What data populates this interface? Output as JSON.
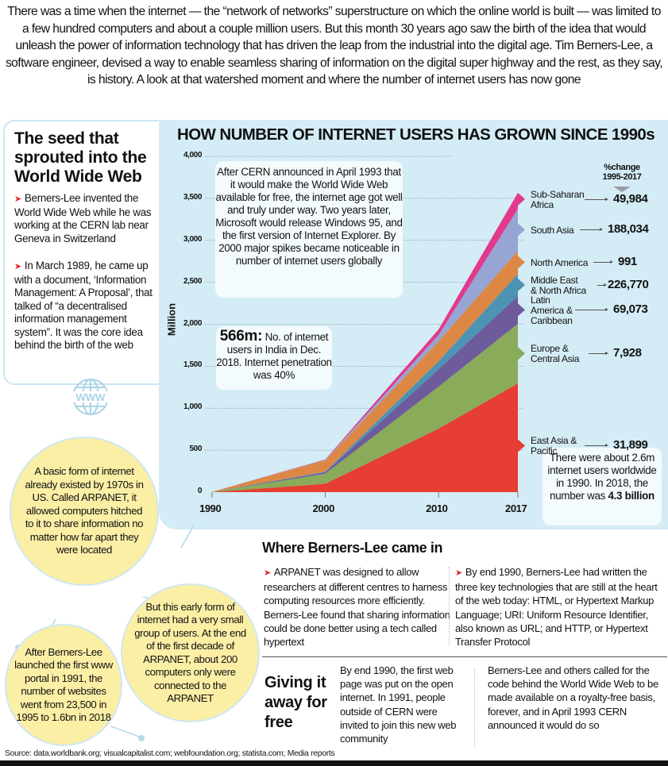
{
  "intro": "There was a time when the internet — the “network of networks” superstructure on which the online world is built — was limited to a few hundred computers and about a couple million users. But this month 30 years ago saw the birth of the idea that would unleash the power of information technology that has driven the leap from the industrial into the digital age. Tim Berners-Lee, a software engineer, devised a way to enable seamless sharing of information on the digital super highway and the rest, as they say, is history. A look at that watershed moment and where the number of internet users has now gone",
  "seed": {
    "title": "The seed that sprouted into the World Wide Web",
    "points": [
      "Berners-Lee invented the World Wide Web while he was working at the CERN lab near Geneva in Switzerland",
      "In March 1989, he came up with a document, ‘Information Management: A Proposal’, that talked of “a decentralised information management system”. It was the core idea behind the birth of the web"
    ],
    "icon_label": "WWW"
  },
  "chart_data": {
    "type": "area",
    "stacked": true,
    "title": "HOW NUMBER OF INTERNET USERS HAS GROWN SINCE 1990s",
    "xlabel": "",
    "ylabel": "Million",
    "x": [
      1990,
      2000,
      2010,
      2017
    ],
    "x_tick_labels": [
      "1990",
      "2000",
      "2010",
      "2017"
    ],
    "ylim": [
      0,
      4000
    ],
    "y_ticks": [
      0,
      500,
      1000,
      1500,
      2000,
      2500,
      3000,
      3500,
      4000
    ],
    "y_tick_labels": [
      "0",
      "500",
      "1,000",
      "1,500",
      "2,000",
      "2,500",
      "3,000",
      "3,500",
      "4,000"
    ],
    "grid": true,
    "legend_position": "right",
    "legend_header": [
      "%change",
      "1995-2017"
    ],
    "series": [
      {
        "name": "East Asia & Pacific",
        "color": "#e63e33",
        "values": [
          1,
          100,
          757,
          1296
        ],
        "pct_change": "31,899"
      },
      {
        "name": "Europe & Central Asia",
        "color": "#8aab59",
        "values": [
          1,
          120,
          500,
          710
        ],
        "pct_change": "7,928"
      },
      {
        "name": "Latin America & Caribbean",
        "color": "#6e5b9b",
        "values": [
          0,
          18,
          208,
          330
        ],
        "pct_change": "69,073"
      },
      {
        "name": "Middle East & North Africa",
        "color": "#4d93b3",
        "values": [
          0,
          7,
          95,
          265
        ],
        "pct_change": "226,770"
      },
      {
        "name": "North America",
        "color": "#dc8844",
        "values": [
          1,
          135,
          237,
          275
        ],
        "pct_change": "991"
      },
      {
        "name": "South Asia",
        "color": "#96a5d3",
        "values": [
          0,
          5,
          75,
          500
        ],
        "pct_change": "188,034"
      },
      {
        "name": "Sub-Saharan Africa",
        "color": "#e2398c",
        "values": [
          0,
          5,
          67,
          190
        ],
        "pct_change": "49,984"
      }
    ]
  },
  "chart_notes": {
    "cern": "After CERN announced in April 1993 that it would make the World Wide Web available for free, the internet age got well and truly under way. Two years later, Microsoft would release Windows 95, and the first version of Internet Explorer. By 2000 major spikes became noticeable in number of internet users globally",
    "india_big": "566m:",
    "india_rest": "No. of internet users in India in Dec. 2018. Internet penetration was 40%",
    "world_pre": "There were about 2.6m internet users worldwide in 1990. In 2018, the number was",
    "world_bold": "4.3 billion"
  },
  "bubbles": {
    "arpanet": "A basic form of internet already existed by 1970s in US. Called ARPANET, it allowed computers hitched to it to share information no matter how far apart they were located",
    "early": "But this early form of internet had a very small group of users. At the end of the first decade of ARPANET, about 200 computers only were connected to the ARPANET",
    "websites": "After Berners-Lee launched the first www portal in 1991, the number of websites went from 23,500 in 1995 to 1.6bn in 2018"
  },
  "where": {
    "title": "Where Berners-Lee came in",
    "col1": "ARPANET was designed to allow researchers at different centres to harness computing resources more efficiently. Berners-Lee found that sharing information could be done better using a tech called hypertext",
    "col2": "By end 1990, Berners-Lee had written the three key technologies that are still at the heart of the web today: HTML, or Hypertext Markup Language; URI: Uniform Resource Identifier, also known as URL; and HTTP, or Hypertext Transfer Protocol"
  },
  "giving": {
    "title": "Giving it away for free",
    "col1": "By end 1990, the first web page was put on the open internet. In 1991, people outside of CERN were invited to join this new web community",
    "col2": "Berners-Lee and others called for the code behind the World Wide Web to be made available on a royalty-free basis, forever, and in April 1993 CERN announced it would do so"
  },
  "source": "Source: data.worldbank.org; visualcapitalist.com; webfoundation.org; statista.com; Media reports"
}
